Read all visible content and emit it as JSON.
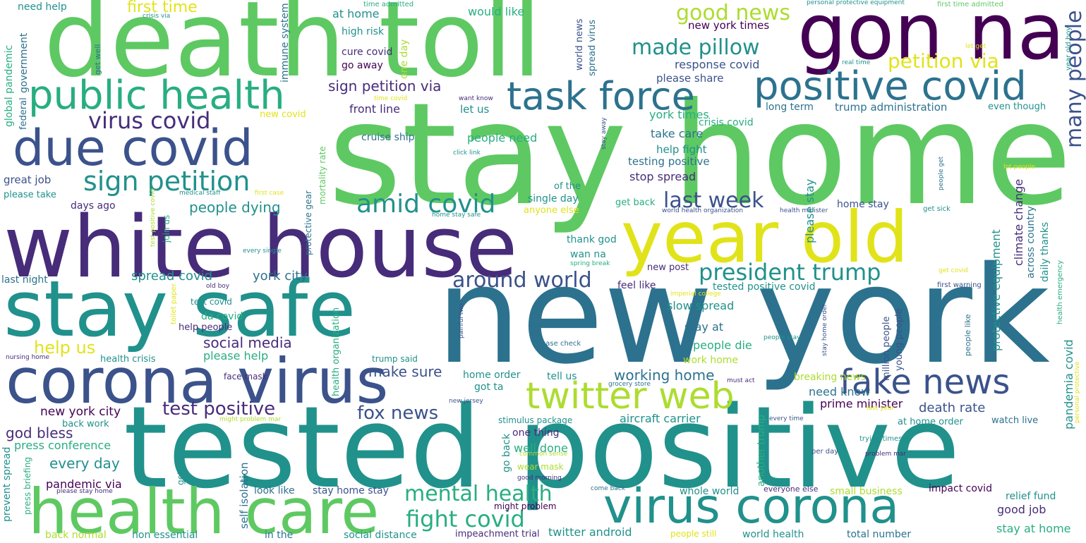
{
  "colors": {
    "purple": "#472c7a",
    "indigo": "#3b528b",
    "blue": "#2c728e",
    "teal": "#21918c",
    "green": "#28ae80",
    "lightgreen": "#5ec962",
    "lime": "#addc30",
    "yellow": "#e1e31a",
    "darkpurple": "#440154"
  },
  "words": {
    "stay_home": "stay home",
    "new_york": "new york",
    "tested_positive": "tested positive",
    "death_toll": "death toll",
    "white_house": "white house",
    "stay_safe": "stay safe",
    "corona_virus": "corona virus",
    "health_care": "health care",
    "year_old": "year old",
    "gon_na": "gon na",
    "virus_corona": "virus corona",
    "due_covid": "due covid",
    "public_health": "public health",
    "positive_covid": "positive covid",
    "task_force": "task force",
    "twitter_web": "twitter web",
    "fake_news": "fake news",
    "president_trump": "president trump",
    "amid_covid": "amid covid",
    "sign_petition": "sign petition",
    "virus_covid": "virus covid",
    "around_world": "around world",
    "many_people": "many people",
    "made_pillow": "made pillow",
    "good_news": "good news",
    "petition_via": "petition via",
    "test_positive": "test positive",
    "fight_covid": "fight covid",
    "mental_health": "mental health",
    "last_week": "last week",
    "first_time": "first time",
    "sign_petition_via": "sign petition via",
    "fox_news": "fox news",
    "working_home": "working home",
    "people_dying": "people dying",
    "help_us": "help us",
    "social_media": "social media",
    "make_sure": "make sure",
    "spread_covid": "spread covid",
    "york_city": "york city",
    "new_york_city": "new york city",
    "every_day": "every day",
    "god_bless": "god bless",
    "press_conference": "press conference",
    "pandemic_via": "pandemic via",
    "death_rate": "death rate",
    "prime_minister": "prime minister",
    "need_know": "need know",
    "protective_equipment": "protective equipment",
    "climate_change": "climate change",
    "pandemia_covid": "pandemia covid",
    "daily_thanks": "daily thanks",
    "across_country": "across country",
    "slow_spread": "slow spread",
    "stay_at": "stay at",
    "people_die": "people die",
    "work_home": "work home",
    "stop_spread": "stop spread",
    "help_fight": "help fight",
    "take_care": "take care",
    "testing_positive": "testing positive",
    "crisis_covid": "crisis covid",
    "york_times": "york times",
    "response_covid": "response covid",
    "please_share": "please share",
    "new_york_times": "new york times",
    "trump_administration": "trump administration",
    "long_term": "long term",
    "even_though": "even though",
    "front_line": "front line",
    "let_us": "let us",
    "cure_covid": "cure covid",
    "go_away": "go away",
    "high_risk": "high risk",
    "at_home": "at home",
    "would_like": "would like",
    "need_help": "need help",
    "crisis_via": "crisis via",
    "time_admitted": "time admitted",
    "personal_protective_equipment": "personal protective equipment",
    "first_time_admitted": "first time admitted",
    "let_get": "let get",
    "year_old_boy": "year old boy",
    "real_time": "real time",
    "want_know": "want know",
    "time_covid": "time covid",
    "one_day": "one day",
    "world_news": "world news",
    "spread_virus": "spread virus",
    "immune_system": "immune system",
    "government": "government",
    "federal": "federal",
    "global_pandemic": "global pandemic",
    "get_well": "get well",
    "new_covid": "new covid",
    "cruise_ship": "cruise ship",
    "people_need": "people need",
    "click_link": "click link",
    "stay_away": "stay away",
    "great_job": "great job",
    "please_take": "please take",
    "test_positive_covid": "test positive covid",
    "medical_staff": "medical staff",
    "first_case": "first case",
    "days_ago": "days ago",
    "join_us": "join us",
    "protective_gear": "protective gear",
    "mortality_rate": "mortality rate",
    "single_day": "single day",
    "of_the": "of the",
    "anyone_else": "anyone else",
    "get_back": "get back",
    "home_stay_safe": "home stay safe",
    "world_health_organization": "world health organization",
    "health_minister": "health minister",
    "home_stay": "home stay",
    "please_stay": "please stay",
    "people_get": "people get",
    "get_sick": "get sick",
    "lot_people": "lot people",
    "thank_god": "thank god",
    "wan_na": "wan na",
    "every_single": "every single",
    "spring_break": "spring break",
    "new_post": "new post",
    "feel_like": "feel like",
    "tested_positive_covid": "tested positive covid",
    "imperial_college": "imperial college",
    "old_boy": "old boy",
    "last_night": "last night",
    "toilet_paper": "toilet paper",
    "test_covid": "test covid",
    "da_covid": "da covid",
    "help_people": "help people",
    "please_help": "please help",
    "health_organization": "health organization",
    "trump_said": "trump said",
    "painful_two": "painful two",
    "please_check": "please check",
    "people_stay": "people stay",
    "stay_home_order": "stay home order",
    "million_people": "million people",
    "young_people": "young people",
    "people_like": "people like",
    "get_covid": "get covid",
    "first_warning": "first warning",
    "health_emergency": "health emergency",
    "personal_protective": "personal protective",
    "nursing_home": "nursing home",
    "health_crisis": "health crisis",
    "face_mask": "face mask",
    "home_order": "home order",
    "tell_us": "tell us",
    "got_ta": "got ta",
    "grocery_store": "grocery store",
    "must_act": "must act",
    "breaking_news": "breaking news",
    "new_jersey": "new jersey",
    "last_year": "last year",
    "back_work": "back work",
    "might_problem_mar": "might problem mar",
    "aircraft_carrier": "aircraft carrier",
    "stimulus_package": "stimulus package",
    "one_thing": "one thing",
    "every_time": "every time",
    "at_home_order": "at home order",
    "watch_live": "watch live",
    "well_done": "well done",
    "go_back": "go back",
    "common_sense": "common sense",
    "trying_times": "trying times",
    "per_day": "per day",
    "problem_mar": "problem mar",
    "prevent_spread": "prevent spread",
    "press_briefing": "press briefing",
    "get_tested": "get tested",
    "wear_mask": "wear mask",
    "self_isolation": "self isolation",
    "good_morning": "good morning",
    "another_trump": "another trump",
    "please_stay_home": "please stay home",
    "look_like": "look like",
    "stay_home_stay": "stay home stay",
    "might_problem": "might problem",
    "come_back": "come back",
    "whole_world": "whole world",
    "everyone_else": "everyone else",
    "small_business": "small business",
    "impact_covid": "impact covid",
    "relief_fund": "relief fund",
    "good_job": "good job",
    "stay_at_home": "stay at home",
    "back_normal": "back normal",
    "non_essential": "non essential",
    "in_the": "in the",
    "social_distance": "social distance",
    "impeachment_trial": "impeachment trial",
    "twitter_android": "twitter android",
    "people_still": "people still",
    "world_health": "world health",
    "total_number": "total number"
  }
}
